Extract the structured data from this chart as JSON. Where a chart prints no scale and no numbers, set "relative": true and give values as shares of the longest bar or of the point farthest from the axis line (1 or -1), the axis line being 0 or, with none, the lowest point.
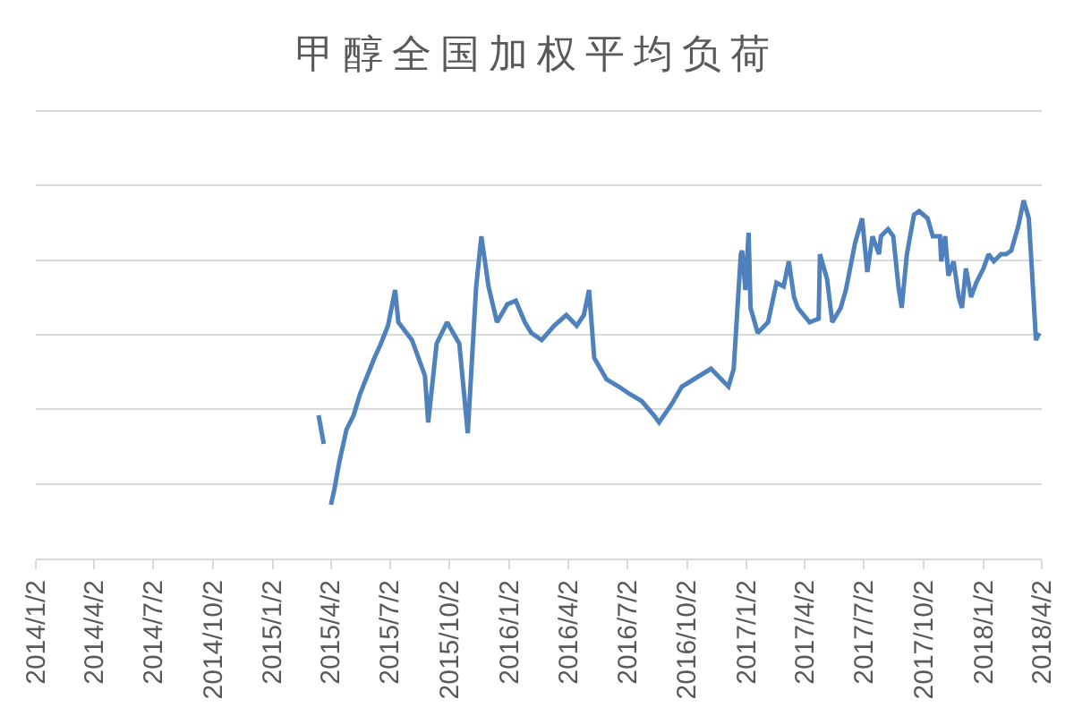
{
  "chart_data": {
    "type": "line",
    "title": "甲醇全国加权平均负荷",
    "relative": true,
    "color": "#4f81bd",
    "grid": "y",
    "xlim": [
      "2014-01-02",
      "2018-04-02"
    ],
    "xticks": [
      {
        "value": "2014-01-02",
        "label": "2014/1/2"
      },
      {
        "value": "2014-04-02",
        "label": "2014/4/2"
      },
      {
        "value": "2014-07-02",
        "label": "2014/7/2"
      },
      {
        "value": "2014-10-02",
        "label": "2014/10/2"
      },
      {
        "value": "2015-01-02",
        "label": "2015/1/2"
      },
      {
        "value": "2015-04-02",
        "label": "2015/4/2"
      },
      {
        "value": "2015-07-02",
        "label": "2015/7/2"
      },
      {
        "value": "2015-10-02",
        "label": "2015/10/2"
      },
      {
        "value": "2016-01-02",
        "label": "2016/1/2"
      },
      {
        "value": "2016-04-02",
        "label": "2016/4/2"
      },
      {
        "value": "2016-07-02",
        "label": "2016/7/2"
      },
      {
        "value": "2016-10-02",
        "label": "2016/10/2"
      },
      {
        "value": "2017-01-02",
        "label": "2017/1/2"
      },
      {
        "value": "2017-04-02",
        "label": "2017/4/2"
      },
      {
        "value": "2017-07-02",
        "label": "2017/7/2"
      },
      {
        "value": "2017-10-02",
        "label": "2017/10/2"
      },
      {
        "value": "2018-01-02",
        "label": "2018/1/2"
      },
      {
        "value": "2018-04-02",
        "label": "2018/4/2"
      }
    ],
    "x": [
      "2015-03-14",
      "2015-03-22",
      "2015-03-27",
      "2015-04-02",
      "2015-04-07",
      "2015-04-15",
      "2015-04-26",
      "2015-05-07",
      "2015-05-17",
      "2015-05-28",
      "2015-06-08",
      "2015-06-18",
      "2015-06-29",
      "2015-07-10",
      "2015-07-15",
      "2015-08-05",
      "2015-08-25",
      "2015-08-30",
      "2015-09-12",
      "2015-09-28",
      "2015-10-17",
      "2015-10-30",
      "2015-11-12",
      "2015-11-20",
      "2015-12-01",
      "2015-12-14",
      "2015-12-30",
      "2016-01-12",
      "2016-01-26",
      "2016-02-05",
      "2016-02-21",
      "2016-03-11",
      "2016-03-30",
      "2016-04-15",
      "2016-04-26",
      "2016-05-04",
      "2016-05-12",
      "2016-05-31",
      "2016-06-19",
      "2016-07-05",
      "2016-07-24",
      "2016-08-12",
      "2016-08-20",
      "2016-09-08",
      "2016-09-24",
      "2016-10-12",
      "2016-11-08",
      "2016-12-05",
      "2016-12-13",
      "2016-12-24",
      "2016-12-26",
      "2016-12-31",
      "2017-01-05",
      "2017-01-08",
      "2017-01-19",
      "2017-02-04",
      "2017-02-17",
      "2017-02-28",
      "2017-03-08",
      "2017-03-16",
      "2017-03-22",
      "2017-04-09",
      "2017-04-23",
      "2017-04-25",
      "2017-05-06",
      "2017-05-14",
      "2017-05-27",
      "2017-06-04",
      "2017-06-18",
      "2017-06-29",
      "2017-07-07",
      "2017-07-15",
      "2017-07-25",
      "2017-07-28",
      "2017-08-08",
      "2017-08-16",
      "2017-08-24",
      "2017-08-29",
      "2017-09-06",
      "2017-09-17",
      "2017-09-25",
      "2017-10-08",
      "2017-10-16",
      "2017-10-27",
      "2017-10-29",
      "2017-11-04",
      "2017-11-09",
      "2017-11-17",
      "2017-11-25",
      "2017-11-30",
      "2017-12-06",
      "2017-12-14",
      "2017-12-22",
      "2018-01-02",
      "2018-01-10",
      "2018-01-18",
      "2018-01-29",
      "2018-02-06",
      "2018-02-14",
      "2018-02-25",
      "2018-03-05",
      "2018-03-13",
      "2018-03-18",
      "2018-03-24",
      "2018-03-29"
    ],
    "values": [
      0.4,
      0.32,
      null,
      0.15,
      0.19,
      0.27,
      0.36,
      0.4,
      0.46,
      0.51,
      0.56,
      0.6,
      0.65,
      0.75,
      0.66,
      0.61,
      0.51,
      0.38,
      0.6,
      0.66,
      0.6,
      0.35,
      0.76,
      0.9,
      0.76,
      0.66,
      0.71,
      0.72,
      0.66,
      0.63,
      0.61,
      0.65,
      0.68,
      0.65,
      0.68,
      0.75,
      0.56,
      0.5,
      0.48,
      0.46,
      0.44,
      0.4,
      0.38,
      0.43,
      0.48,
      0.5,
      0.53,
      0.48,
      0.53,
      0.85,
      0.86,
      0.75,
      0.91,
      0.7,
      0.63,
      0.66,
      0.77,
      0.76,
      0.83,
      0.73,
      0.7,
      0.66,
      0.67,
      0.85,
      0.78,
      0.66,
      0.7,
      0.75,
      0.88,
      0.95,
      0.8,
      0.9,
      0.85,
      0.9,
      0.92,
      0.9,
      0.76,
      0.7,
      0.85,
      0.96,
      0.97,
      0.95,
      0.9,
      0.9,
      0.83,
      0.9,
      0.79,
      0.83,
      0.73,
      0.7,
      0.81,
      0.73,
      0.77,
      0.81,
      0.85,
      0.83,
      0.85,
      0.85,
      0.86,
      0.93,
      1,
      0.95,
      0.8,
      0.61,
      0.63
    ]
  }
}
